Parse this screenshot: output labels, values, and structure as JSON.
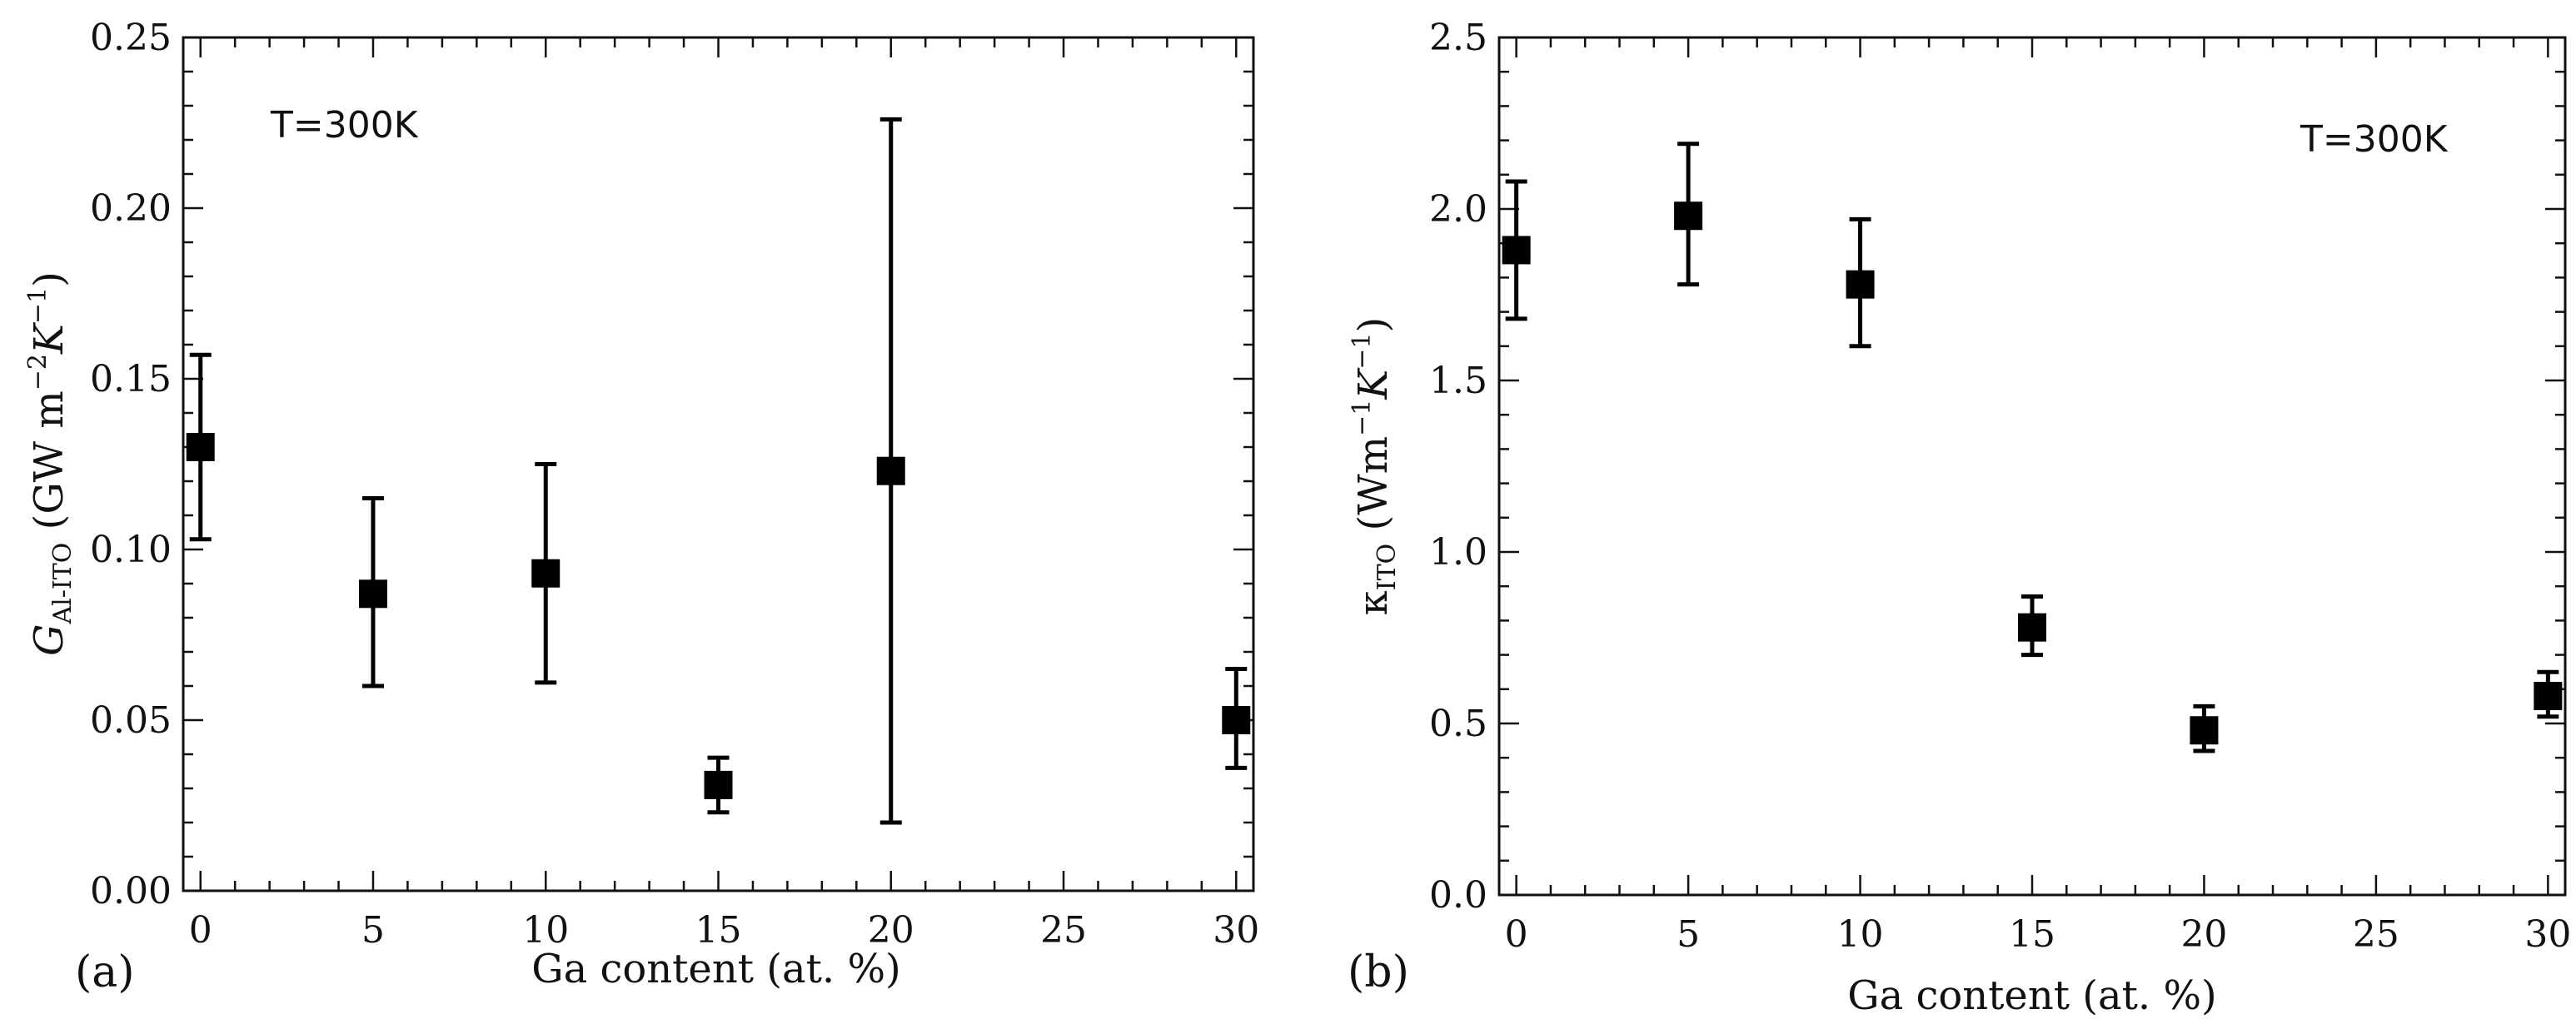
{
  "chart_data": [
    {
      "type": "scatter",
      "panel_label": "(a)",
      "annotation": "T=300K",
      "xlabel": "Ga content (at. %)",
      "ylabel": {
        "symbol": "G",
        "subscript": "Al-ITO",
        "units_open": " (GW m",
        "exp1": "−2",
        "units_mid": "K",
        "exp2": "−1",
        "units_close": ")"
      },
      "xlim": [
        -0.5,
        30.5
      ],
      "ylim": [
        0,
        0.25
      ],
      "xticks": [
        "0",
        "5",
        "10",
        "15",
        "20",
        "25",
        "30"
      ],
      "yticks": [
        "0.00",
        "0.05",
        "0.10",
        "0.15",
        "0.20",
        "0.25"
      ],
      "x": [
        0,
        5,
        10,
        15,
        20,
        30
      ],
      "y": [
        0.13,
        0.087,
        0.093,
        0.031,
        0.123,
        0.05
      ],
      "y_low": [
        0.103,
        0.06,
        0.061,
        0.023,
        0.02,
        0.036
      ],
      "y_high": [
        0.157,
        0.115,
        0.125,
        0.039,
        0.226,
        0.065
      ],
      "grid": false,
      "marker_color": "#000000"
    },
    {
      "type": "scatter",
      "panel_label": "(b)",
      "annotation": "T=300K",
      "xlabel": "Ga content (at. %)",
      "ylabel": {
        "symbol": "κ",
        "subscript": "ITO",
        "units_open": " (Wm",
        "exp1": "−1",
        "units_mid": "K",
        "exp2": "−1",
        "units_close": ")"
      },
      "xlim": [
        -0.5,
        30.5
      ],
      "ylim": [
        0,
        2.5
      ],
      "xticks": [
        "0",
        "5",
        "10",
        "15",
        "20",
        "25",
        "30"
      ],
      "yticks": [
        "0.0",
        "0.5",
        "1.0",
        "1.5",
        "2.0",
        "2.5"
      ],
      "x": [
        0,
        5,
        10,
        15,
        20,
        30
      ],
      "y": [
        1.88,
        1.98,
        1.78,
        0.78,
        0.48,
        0.58
      ],
      "y_low": [
        1.68,
        1.78,
        1.6,
        0.7,
        0.42,
        0.52
      ],
      "y_high": [
        2.08,
        2.19,
        1.97,
        0.87,
        0.55,
        0.65
      ],
      "grid": false,
      "marker_color": "#000000"
    }
  ]
}
